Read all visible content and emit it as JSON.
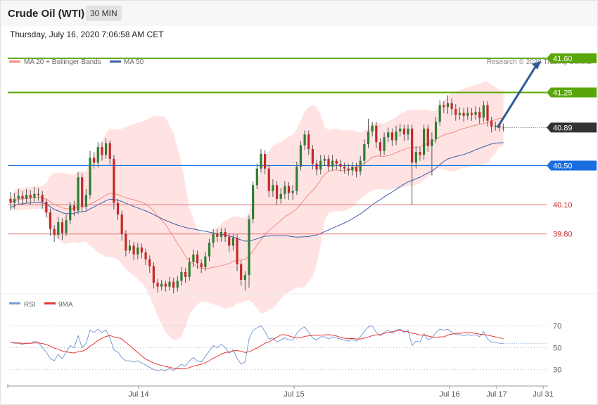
{
  "header": {
    "title": "Crude Oil (WTI)",
    "timeframe": "30 MIN",
    "datetime": "Thursday, July 16, 2020 7:06:58 AM CET"
  },
  "legend": {
    "ma20": "MA 20 + Bollinger Bands",
    "ma50": "MA 50",
    "rsi": "RSI",
    "ma9": "9MA",
    "credit": "Research © 2020 Trading Central"
  },
  "colors": {
    "bull": "#2e7d32",
    "bear": "#c62828",
    "band": "#ffd9d9",
    "ma20": "#f28b82",
    "ma50": "#3a5fa8",
    "resistance": "#5aa60a",
    "pivot": "#1a6ee0",
    "support": "#e57373",
    "current": "#333333",
    "rsi": "#7b9ad6",
    "rsi_ma": "#e53935",
    "arrow": "#2d5a96"
  },
  "chart_data": [
    {
      "type": "candlestick",
      "title": "Crude Oil (WTI)",
      "interval": "30 MIN",
      "x_labels": [
        "Jul 14",
        "Jul 15",
        "Jul 16",
        "Jul 17",
        "Jul 31"
      ],
      "ylim": [
        39.2,
        41.7
      ],
      "levels": [
        {
          "label": "41.60",
          "value": 41.6,
          "kind": "resistance"
        },
        {
          "label": "41.25",
          "value": 41.25,
          "kind": "resistance"
        },
        {
          "label": "40.89",
          "value": 40.89,
          "kind": "current"
        },
        {
          "label": "40.50",
          "value": 40.5,
          "kind": "pivot"
        },
        {
          "label": "40.10",
          "value": 40.1,
          "kind": "support"
        },
        {
          "label": "39.80",
          "value": 39.8,
          "kind": "support"
        }
      ],
      "projection": {
        "from": 40.89,
        "to": 41.6
      },
      "candles": [
        [
          40.16,
          40.12,
          40.23,
          40.04
        ],
        [
          40.12,
          40.16,
          40.22,
          40.06
        ],
        [
          40.16,
          40.19,
          40.26,
          40.11
        ],
        [
          40.19,
          40.16,
          40.24,
          40.1
        ],
        [
          40.16,
          40.2,
          40.26,
          40.12
        ],
        [
          40.2,
          40.17,
          40.25,
          40.1
        ],
        [
          40.17,
          40.21,
          40.28,
          40.13
        ],
        [
          40.21,
          40.2,
          40.27,
          40.14
        ],
        [
          40.2,
          40.13,
          40.24,
          40.06
        ],
        [
          40.13,
          40.02,
          40.16,
          39.97
        ],
        [
          40.02,
          39.85,
          40.06,
          39.78
        ],
        [
          39.85,
          39.79,
          39.89,
          39.72
        ],
        [
          39.79,
          39.92,
          39.97,
          39.75
        ],
        [
          39.92,
          39.81,
          39.96,
          39.74
        ],
        [
          39.81,
          39.94,
          40.0,
          39.78
        ],
        [
          39.94,
          40.09,
          40.13,
          39.9
        ],
        [
          40.09,
          40.04,
          40.14,
          39.98
        ],
        [
          40.04,
          40.38,
          40.43,
          40.0
        ],
        [
          40.38,
          40.08,
          40.42,
          40.02
        ],
        [
          40.08,
          40.2,
          40.26,
          40.04
        ],
        [
          40.2,
          40.58,
          40.65,
          40.16
        ],
        [
          40.58,
          40.53,
          40.64,
          40.47
        ],
        [
          40.53,
          40.69,
          40.74,
          40.48
        ],
        [
          40.69,
          40.61,
          40.74,
          40.55
        ],
        [
          40.61,
          40.73,
          40.78,
          40.57
        ],
        [
          40.73,
          40.57,
          40.76,
          40.51
        ],
        [
          40.57,
          40.12,
          40.61,
          40.05
        ],
        [
          40.12,
          40.0,
          40.16,
          39.94
        ],
        [
          40.0,
          39.8,
          40.04,
          39.73
        ],
        [
          39.8,
          39.63,
          39.84,
          39.57
        ],
        [
          39.63,
          39.68,
          39.74,
          39.6
        ],
        [
          39.68,
          39.59,
          39.72,
          39.53
        ],
        [
          39.59,
          39.66,
          39.71,
          39.54
        ],
        [
          39.66,
          39.61,
          39.7,
          39.55
        ],
        [
          39.61,
          39.54,
          39.65,
          39.48
        ],
        [
          39.54,
          39.47,
          39.58,
          39.4
        ],
        [
          39.47,
          39.3,
          39.51,
          39.24
        ],
        [
          39.3,
          39.26,
          39.34,
          39.2
        ],
        [
          39.26,
          39.29,
          39.33,
          39.22
        ],
        [
          39.29,
          39.26,
          39.32,
          39.21
        ],
        [
          39.26,
          39.31,
          39.36,
          39.22
        ],
        [
          39.31,
          39.25,
          39.35,
          39.19
        ],
        [
          39.25,
          39.32,
          39.37,
          39.21
        ],
        [
          39.32,
          39.41,
          39.46,
          39.27
        ],
        [
          39.41,
          39.36,
          39.45,
          39.3
        ],
        [
          39.36,
          39.51,
          39.56,
          39.32
        ],
        [
          39.51,
          39.59,
          39.64,
          39.46
        ],
        [
          39.59,
          39.5,
          39.63,
          39.44
        ],
        [
          39.5,
          39.46,
          39.54,
          39.4
        ],
        [
          39.46,
          39.57,
          39.62,
          39.42
        ],
        [
          39.57,
          39.71,
          39.75,
          39.52
        ],
        [
          39.71,
          39.8,
          39.85,
          39.66
        ],
        [
          39.8,
          39.77,
          39.85,
          39.72
        ],
        [
          39.77,
          39.82,
          39.86,
          39.72
        ],
        [
          39.82,
          39.77,
          39.86,
          39.72
        ],
        [
          39.77,
          39.68,
          39.81,
          39.62
        ],
        [
          39.68,
          39.76,
          39.8,
          39.63
        ],
        [
          39.76,
          39.49,
          39.8,
          39.42
        ],
        [
          39.49,
          39.33,
          39.53,
          39.27
        ],
        [
          39.33,
          39.38,
          39.42,
          39.22
        ],
        [
          39.38,
          39.95,
          39.99,
          39.25
        ],
        [
          39.95,
          40.3,
          40.34,
          39.91
        ],
        [
          40.3,
          40.47,
          40.52,
          40.26
        ],
        [
          40.47,
          40.62,
          40.67,
          40.43
        ],
        [
          40.62,
          40.47,
          40.66,
          40.41
        ],
        [
          40.47,
          40.24,
          40.51,
          40.18
        ],
        [
          40.24,
          40.3,
          40.36,
          40.18
        ],
        [
          40.3,
          40.16,
          40.34,
          40.1
        ],
        [
          40.16,
          40.21,
          40.27,
          40.11
        ],
        [
          40.21,
          40.29,
          40.34,
          40.16
        ],
        [
          40.29,
          40.22,
          40.33,
          40.15
        ],
        [
          40.22,
          40.24,
          40.3,
          40.15
        ],
        [
          40.24,
          40.49,
          40.54,
          40.2
        ],
        [
          40.49,
          40.71,
          40.75,
          40.45
        ],
        [
          40.71,
          40.82,
          40.86,
          40.66
        ],
        [
          40.82,
          40.67,
          40.86,
          40.61
        ],
        [
          40.67,
          40.52,
          40.71,
          40.46
        ],
        [
          40.52,
          40.46,
          40.56,
          40.4
        ],
        [
          40.46,
          40.55,
          40.61,
          40.41
        ],
        [
          40.55,
          40.57,
          40.61,
          40.5
        ],
        [
          40.57,
          40.49,
          40.61,
          40.44
        ],
        [
          40.49,
          40.55,
          40.61,
          40.45
        ],
        [
          40.55,
          40.52,
          40.57,
          40.46
        ],
        [
          40.52,
          40.49,
          40.56,
          40.44
        ],
        [
          40.49,
          40.47,
          40.53,
          40.42
        ],
        [
          40.47,
          40.45,
          40.52,
          40.4
        ],
        [
          40.45,
          40.49,
          40.54,
          40.4
        ],
        [
          40.49,
          40.44,
          40.53,
          40.38
        ],
        [
          40.44,
          40.55,
          40.6,
          40.4
        ],
        [
          40.55,
          40.72,
          40.77,
          40.51
        ],
        [
          40.72,
          40.85,
          40.98,
          40.68
        ],
        [
          40.85,
          40.91,
          40.95,
          40.8
        ],
        [
          40.91,
          40.74,
          40.95,
          40.68
        ],
        [
          40.74,
          40.65,
          40.78,
          40.6
        ],
        [
          40.65,
          40.79,
          40.84,
          40.61
        ],
        [
          40.79,
          40.84,
          40.89,
          40.74
        ],
        [
          40.84,
          40.76,
          40.88,
          40.7
        ],
        [
          40.76,
          40.85,
          40.91,
          40.71
        ],
        [
          40.85,
          40.88,
          40.93,
          40.8
        ],
        [
          40.88,
          40.82,
          40.92,
          40.75
        ],
        [
          40.82,
          40.88,
          40.92,
          40.76
        ],
        [
          40.88,
          40.53,
          40.92,
          40.1
        ],
        [
          40.53,
          40.64,
          40.7,
          40.47
        ],
        [
          40.64,
          40.61,
          40.69,
          40.55
        ],
        [
          40.61,
          40.88,
          40.92,
          40.56
        ],
        [
          40.88,
          40.7,
          40.92,
          40.64
        ],
        [
          40.7,
          40.77,
          40.84,
          40.4
        ],
        [
          40.77,
          40.95,
          41.0,
          40.73
        ],
        [
          40.95,
          41.12,
          41.17,
          40.91
        ],
        [
          41.12,
          41.1,
          41.16,
          41.04
        ],
        [
          41.1,
          41.14,
          41.22,
          41.03
        ],
        [
          41.14,
          41.08,
          41.19,
          41.02
        ],
        [
          41.08,
          41.02,
          41.13,
          40.96
        ],
        [
          41.02,
          41.04,
          41.1,
          40.97
        ],
        [
          41.04,
          41.01,
          41.09,
          40.95
        ],
        [
          41.01,
          41.04,
          41.1,
          40.97
        ],
        [
          41.04,
          41.02,
          41.09,
          40.96
        ],
        [
          41.02,
          41.05,
          41.11,
          40.97
        ],
        [
          41.05,
          40.99,
          41.1,
          40.93
        ],
        [
          40.99,
          41.12,
          41.16,
          40.95
        ],
        [
          41.12,
          40.96,
          41.16,
          40.9
        ],
        [
          40.96,
          40.9,
          41.0,
          40.84
        ],
        [
          40.9,
          40.91,
          40.95,
          40.86
        ],
        [
          40.91,
          40.89,
          40.94,
          40.85
        ],
        [
          40.89,
          40.89,
          40.93,
          40.85
        ]
      ]
    },
    {
      "type": "line",
      "title": "RSI",
      "yticks": [
        30,
        50,
        70
      ],
      "ylim": [
        22,
        78
      ],
      "series": [
        {
          "name": "RSI"
        },
        {
          "name": "9MA"
        }
      ],
      "rsi_values": [
        55,
        54,
        54,
        53,
        54,
        54,
        56,
        55,
        50,
        46,
        40,
        38,
        44,
        40,
        46,
        52,
        50,
        61,
        50,
        54,
        66,
        64,
        67,
        64,
        66,
        59,
        48,
        46,
        41,
        38,
        38,
        37,
        38,
        36,
        34,
        32,
        30,
        29,
        30,
        29,
        31,
        29,
        32,
        35,
        33,
        38,
        41,
        38,
        37,
        42,
        47,
        52,
        50,
        53,
        50,
        45,
        48,
        40,
        35,
        37,
        58,
        66,
        68,
        70,
        65,
        58,
        59,
        55,
        57,
        59,
        57,
        57,
        63,
        67,
        69,
        64,
        59,
        57,
        60,
        60,
        58,
        60,
        59,
        58,
        57,
        56,
        58,
        56,
        60,
        65,
        69,
        70,
        64,
        61,
        64,
        66,
        63,
        66,
        67,
        64,
        66,
        52,
        56,
        55,
        63,
        57,
        59,
        64,
        67,
        66,
        67,
        64,
        62,
        62,
        61,
        62,
        61,
        62,
        60,
        65,
        58,
        55,
        55,
        54,
        54
      ]
    }
  ]
}
